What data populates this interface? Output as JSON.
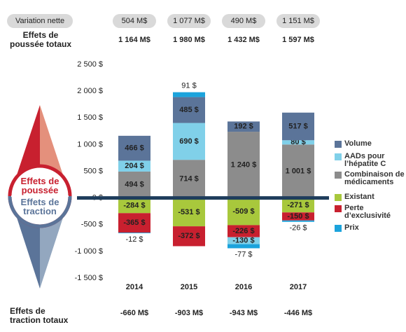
{
  "chart_data": {
    "type": "bar",
    "stacked": true,
    "net_variation_label": "Variation nette",
    "push_totals_label": "Effets de poussée totaux",
    "pull_totals_label": "Effets de traction totaux",
    "push_label": "Effets de poussée",
    "pull_label": "Effets de traction",
    "categories": [
      "2014",
      "2015",
      "2016",
      "2017"
    ],
    "net_variation": [
      "504 M$",
      "1 077 M$",
      "490 M$",
      "1 151 M$"
    ],
    "push_totals": [
      "1 164 M$",
      "1 980 M$",
      "1 432 M$",
      "1 597 M$"
    ],
    "pull_totals": [
      "-660 M$",
      "-903 M$",
      "-943 M$",
      "-446 M$"
    ],
    "series": [
      {
        "name": "Volume",
        "color": "#5b7499",
        "values": [
          466,
          485,
          192,
          517
        ],
        "value_labels": [
          "466 $",
          "485 $",
          "192 $",
          "517 $"
        ]
      },
      {
        "name": "AADs pour l’hépatite C",
        "color": "#80d0e9",
        "values": [
          204,
          690,
          -130,
          80
        ],
        "value_labels": [
          "204 $",
          "690 $",
          "-130 $",
          "80 $"
        ]
      },
      {
        "name": "Combinaison de médicaments",
        "color": "#8c8c8c",
        "values": [
          494,
          714,
          1240,
          1001
        ],
        "value_labels": [
          "494 $",
          "714 $",
          "1 240 $",
          "1 001 $"
        ]
      },
      {
        "name": "Existant",
        "color": "#a8c83c",
        "values": [
          -284,
          -531,
          -509,
          -271
        ],
        "value_labels": [
          "-284 $",
          "-531 $",
          "-509 $",
          "-271 $"
        ]
      },
      {
        "name": "Perte d’exclusivité",
        "color": "#c8202f",
        "values": [
          -365,
          -372,
          -226,
          -150
        ],
        "value_labels": [
          "-365 $",
          "-372 $",
          "-226 $",
          "-150 $"
        ]
      },
      {
        "name": "Prix",
        "color": "#1ba3dc",
        "values": [
          -12,
          91,
          -77,
          -26
        ],
        "value_labels": [
          "-12 $",
          "91 $",
          "-77 $",
          "-26 $"
        ]
      }
    ],
    "ylim": [
      -1500,
      2500
    ],
    "yticks": [
      {
        "value": 2500,
        "label": "2 500 $"
      },
      {
        "value": 2000,
        "label": "2 000 $"
      },
      {
        "value": 1500,
        "label": "1 500 $"
      },
      {
        "value": 1000,
        "label": "1 000 $"
      },
      {
        "value": 500,
        "label": "500 $"
      },
      {
        "value": 0,
        "label": "0 $"
      },
      {
        "value": -500,
        "label": "-500 $"
      },
      {
        "value": -1000,
        "label": "-1 000 $"
      },
      {
        "value": -1500,
        "label": "-1 500 $"
      }
    ]
  }
}
